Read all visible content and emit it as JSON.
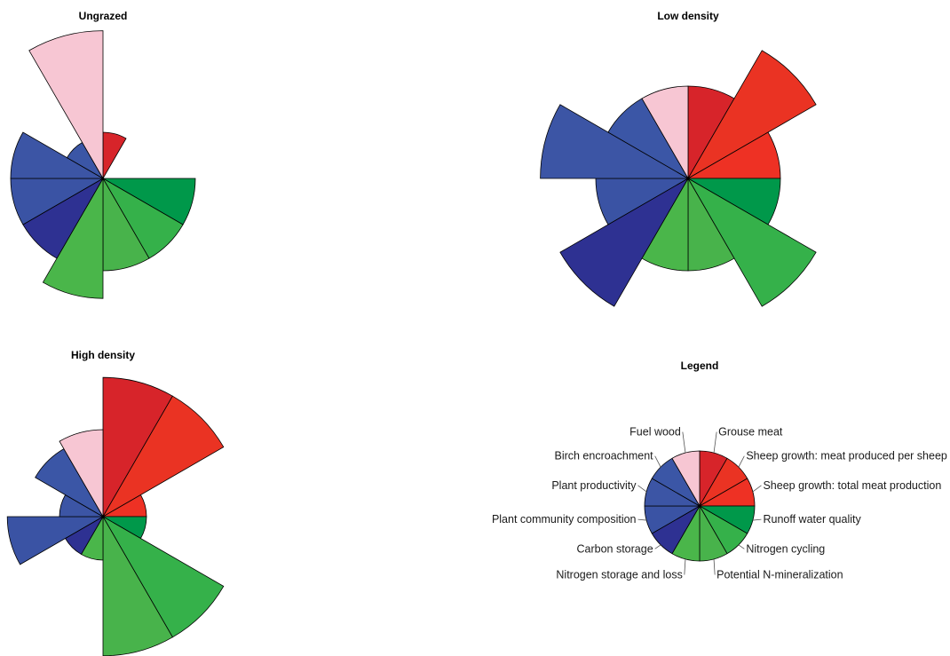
{
  "chart_data": [
    {
      "type": "rose",
      "title": "Ungrazed",
      "categories": [
        "Grouse meat",
        "Sheep growth: meat produced per sheep",
        "Sheep growth: total meat production",
        "Runoff water quality",
        "Nitrogen cycling",
        "Potential N-mineralization",
        "Nitrogen storage and loss",
        "Carbon storage",
        "Plant community composition",
        "Plant productivity",
        "Birch encroachment",
        "Fuel wood"
      ],
      "values": [
        0.5,
        0,
        0,
        1.0,
        1.0,
        1.0,
        1.3,
        1.0,
        1.0,
        1.0,
        0.45,
        1.6
      ]
    },
    {
      "type": "rose",
      "title": "Low density",
      "categories": [
        "Grouse meat",
        "Sheep growth: meat produced per sheep",
        "Sheep growth: total meat production",
        "Runoff water quality",
        "Nitrogen cycling",
        "Potential N-mineralization",
        "Nitrogen storage and loss",
        "Carbon storage",
        "Plant community composition",
        "Plant productivity",
        "Birch encroachment",
        "Fuel wood"
      ],
      "values": [
        1.0,
        1.6,
        1.0,
        1.0,
        1.6,
        1.0,
        1.0,
        1.6,
        1.0,
        1.6,
        1.0,
        1.0
      ]
    },
    {
      "type": "rose",
      "title": "High density",
      "categories": [
        "Grouse meat",
        "Sheep growth: meat produced per sheep",
        "Sheep growth: total meat production",
        "Runoff water quality",
        "Nitrogen cycling",
        "Potential N-mineralization",
        "Nitrogen storage and loss",
        "Carbon storage",
        "Plant community composition",
        "Plant productivity",
        "Birch encroachment",
        "Fuel wood"
      ],
      "values": [
        1.6,
        1.6,
        0.5,
        0.5,
        1.6,
        1.6,
        0.5,
        0.5,
        1.1,
        0.5,
        0.9,
        1.0
      ]
    },
    {
      "type": "rose",
      "title": "Legend",
      "categories": [
        "Grouse meat",
        "Sheep growth: meat produced per sheep",
        "Sheep growth: total meat production",
        "Runoff water quality",
        "Nitrogen cycling",
        "Potential N-mineralization",
        "Nitrogen storage and loss",
        "Carbon storage",
        "Plant community composition",
        "Plant productivity",
        "Birch encroachment",
        "Fuel wood"
      ],
      "values": [
        1,
        1,
        1,
        1,
        1,
        1,
        1,
        1,
        1,
        1,
        1,
        1
      ]
    }
  ],
  "colors": [
    "#d7242a",
    "#ea3323",
    "#ee3124",
    "#00984a",
    "#35b14a",
    "#48b34b",
    "#4ab64a",
    "#2e3192",
    "#3a53a4",
    "#3c55a5",
    "#3b56a6",
    "#f7c6d3"
  ]
}
